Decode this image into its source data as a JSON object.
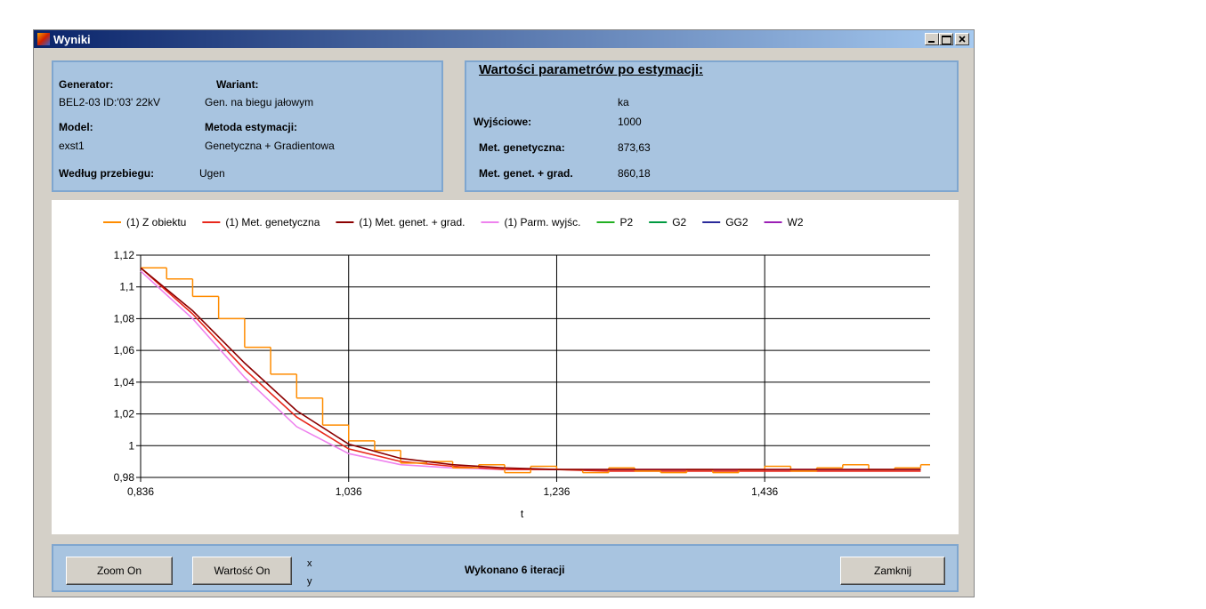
{
  "window": {
    "title": "Wyniki"
  },
  "info": {
    "generator_label": "Generator:",
    "generator": "BEL2-03 ID:'03' 22kV",
    "variant_label": "Wariant:",
    "variant": "Gen. na biegu jałowym",
    "model_label": "Model:",
    "model": "exst1",
    "method_label": "Metoda estymacji:",
    "method": "Genetyczna + Gradientowa",
    "waveform_label": "Według przebiegu:",
    "waveform": "Ugen"
  },
  "params": {
    "title": "Wartości parametrów po estymacji:",
    "column": "ka",
    "rows": [
      {
        "label": "Wyjściowe:",
        "value": "1000"
      },
      {
        "label": "Met. genetyczna:",
        "value": "873,63"
      },
      {
        "label": "Met. genet. + grad.",
        "value": "860,18"
      }
    ]
  },
  "chart_data": {
    "type": "line",
    "xlabel": "t",
    "xlim": [
      0.836,
      1.595
    ],
    "xticks": [
      {
        "value": 0.836,
        "label": "0,836"
      },
      {
        "value": 1.036,
        "label": "1,036"
      },
      {
        "value": 1.236,
        "label": "1,236"
      },
      {
        "value": 1.436,
        "label": "1,436"
      }
    ],
    "ylim": [
      0.98,
      1.12
    ],
    "yticks": [
      {
        "value": 0.98,
        "label": "0,98"
      },
      1,
      {
        "value": 1.02,
        "label": "1,02"
      },
      {
        "value": 1.04,
        "label": "1,04"
      },
      {
        "value": 1.06,
        "label": "1,06"
      },
      {
        "value": 1.08,
        "label": "1,08"
      },
      {
        "value": 1.1,
        "label": "1,1"
      },
      {
        "value": 1.12,
        "label": "1,12"
      }
    ],
    "grid": true,
    "series": [
      {
        "name": "(1) Z obiektu",
        "color": "#ff8c00",
        "step": true,
        "x": [
          0.836,
          0.861,
          0.886,
          0.911,
          0.936,
          0.961,
          0.986,
          1.011,
          1.036,
          1.061,
          1.086,
          1.111,
          1.136,
          1.161,
          1.186,
          1.211,
          1.236,
          1.261,
          1.286,
          1.311,
          1.336,
          1.361,
          1.386,
          1.411,
          1.436,
          1.461,
          1.486,
          1.511,
          1.536,
          1.561,
          1.586
        ],
        "values": [
          1.112,
          1.105,
          1.094,
          1.08,
          1.062,
          1.045,
          1.03,
          1.013,
          1.003,
          0.997,
          0.989,
          0.99,
          0.986,
          0.988,
          0.983,
          0.987,
          0.985,
          0.983,
          0.986,
          0.984,
          0.983,
          0.985,
          0.983,
          0.985,
          0.987,
          0.984,
          0.986,
          0.988,
          0.985,
          0.986,
          0.988
        ]
      },
      {
        "name": "(1) Met. genetyczna",
        "color": "#e8281c",
        "x": [
          0.836,
          0.886,
          0.936,
          0.986,
          1.036,
          1.086,
          1.136,
          1.186,
          1.236,
          1.286,
          1.336,
          1.386,
          1.436,
          1.486,
          1.536,
          1.586
        ],
        "values": [
          1.112,
          1.083,
          1.048,
          1.018,
          0.998,
          0.99,
          0.987,
          0.985,
          0.985,
          0.984,
          0.984,
          0.984,
          0.984,
          0.984,
          0.984,
          0.984
        ]
      },
      {
        "name": "(1) Met. genet. + grad.",
        "color": "#8b0000",
        "x": [
          0.836,
          0.886,
          0.936,
          0.986,
          1.036,
          1.086,
          1.136,
          1.186,
          1.236,
          1.286,
          1.336,
          1.386,
          1.436,
          1.486,
          1.536,
          1.586
        ],
        "values": [
          1.112,
          1.085,
          1.052,
          1.022,
          1.001,
          0.992,
          0.988,
          0.986,
          0.985,
          0.985,
          0.985,
          0.985,
          0.985,
          0.985,
          0.985,
          0.985
        ]
      },
      {
        "name": "(1) Parm. wyjśc.",
        "color": "#ee82ee",
        "x": [
          0.836,
          0.886,
          0.936,
          0.986,
          1.036,
          1.086,
          1.136,
          1.186,
          1.236,
          1.286,
          1.336,
          1.386,
          1.436,
          1.486,
          1.536,
          1.586
        ],
        "values": [
          1.11,
          1.08,
          1.043,
          1.012,
          0.995,
          0.988,
          0.986,
          0.985,
          0.985,
          0.985,
          0.985,
          0.985,
          0.985,
          0.985,
          0.985,
          0.985
        ]
      },
      {
        "name": "P2",
        "color": "#22b022"
      },
      {
        "name": "G2",
        "color": "#009a40"
      },
      {
        "name": "GG2",
        "color": "#2a2a9a"
      },
      {
        "name": "W2",
        "color": "#9b1fb5"
      }
    ]
  },
  "footer": {
    "zoom_button": "Zoom On",
    "value_button": "Wartość On",
    "x_label": "x",
    "y_label": "y",
    "status": "Wykonano 6 iteracji",
    "close_button": "Zamknij"
  }
}
